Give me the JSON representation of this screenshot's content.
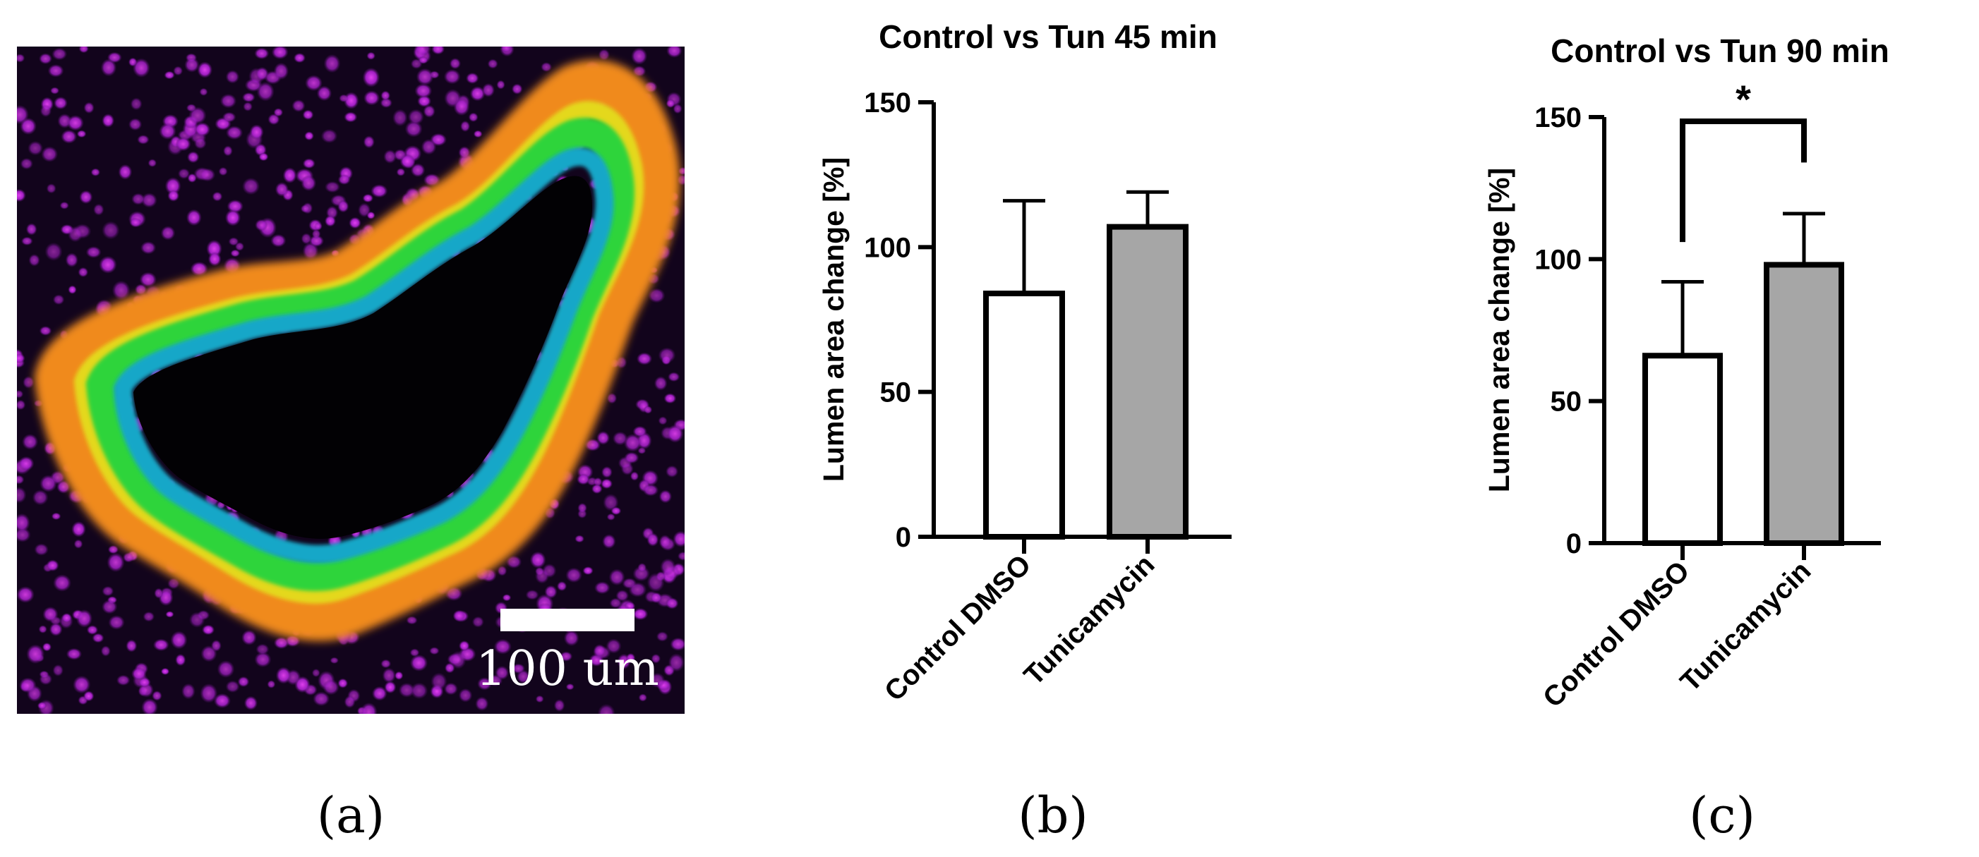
{
  "panels": {
    "a": {
      "letter": "(a)",
      "scale_bar_label": "100 um"
    },
    "b": {
      "letter": "(b)"
    },
    "c": {
      "letter": "(c)"
    }
  },
  "chart_data": [
    {
      "type": "bar",
      "title": "Control vs Tun 45 min",
      "ylabel": "Lumen area change [%]",
      "xlabel": "",
      "categories": [
        "Control DMSO",
        "Tunicamycin"
      ],
      "values": [
        84,
        107
      ],
      "error_upper": [
        116,
        119
      ],
      "bar_colors": [
        "#ffffff",
        "#a6a6a6"
      ],
      "ylim": [
        0,
        150
      ],
      "yticks": [
        0,
        50,
        100,
        150
      ],
      "grid": false
    },
    {
      "type": "bar",
      "title": "Control vs Tun 90 min",
      "ylabel": "Lumen area change [%]",
      "xlabel": "",
      "categories": [
        "Control DMSO",
        "Tunicamycin"
      ],
      "values": [
        66,
        98
      ],
      "error_upper": [
        92,
        116
      ],
      "bar_colors": [
        "#ffffff",
        "#a6a6a6"
      ],
      "ylim": [
        0,
        150
      ],
      "yticks": [
        0,
        50,
        100,
        150
      ],
      "grid": false,
      "significance": {
        "label": "*",
        "between": [
          0,
          1
        ]
      }
    }
  ]
}
